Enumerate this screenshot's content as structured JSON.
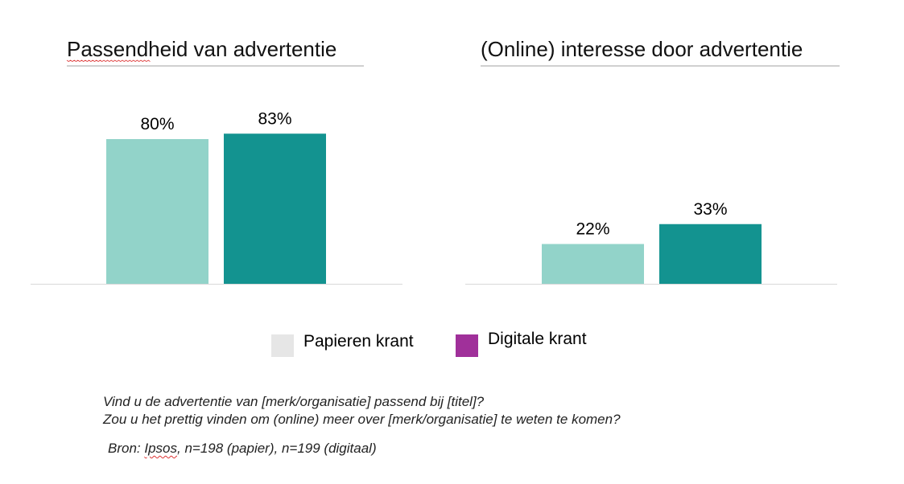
{
  "colors": {
    "papier": "#92d3c9",
    "digitaal": "#139390",
    "legend_papier": "#e6e6e6",
    "legend_digitaal": "#a0309a",
    "axis": "#d9d9d9",
    "title_rule": "#d0d0d0"
  },
  "chart_data": [
    {
      "type": "bar",
      "title": "Passendheid van advertentie",
      "categories": [
        "Papieren krant",
        "Digitale krant"
      ],
      "values": [
        80,
        83
      ],
      "labels": [
        "80%",
        "83%"
      ],
      "ylim": [
        0,
        100
      ],
      "unit": "%"
    },
    {
      "type": "bar",
      "title": "(Online) interesse door advertentie",
      "categories": [
        "Papieren krant",
        "Digitale krant"
      ],
      "values": [
        22,
        33
      ],
      "labels": [
        "22%",
        "33%"
      ],
      "ylim": [
        0,
        100
      ],
      "unit": "%"
    }
  ],
  "legend": [
    {
      "label": "Papieren krant"
    },
    {
      "label": "Digitale krant"
    }
  ],
  "notes": {
    "q1": "Vind u de advertentie van [merk/organisatie] passend bij [titel]?",
    "q2": "Zou u het prettig vinden om (online) meer over [merk/organisatie] te weten te komen?",
    "source_prefix": "Bron: ",
    "source_name": "Ipsos",
    "source_rest": ", n=198 (papier), n=199 (digitaal)"
  }
}
